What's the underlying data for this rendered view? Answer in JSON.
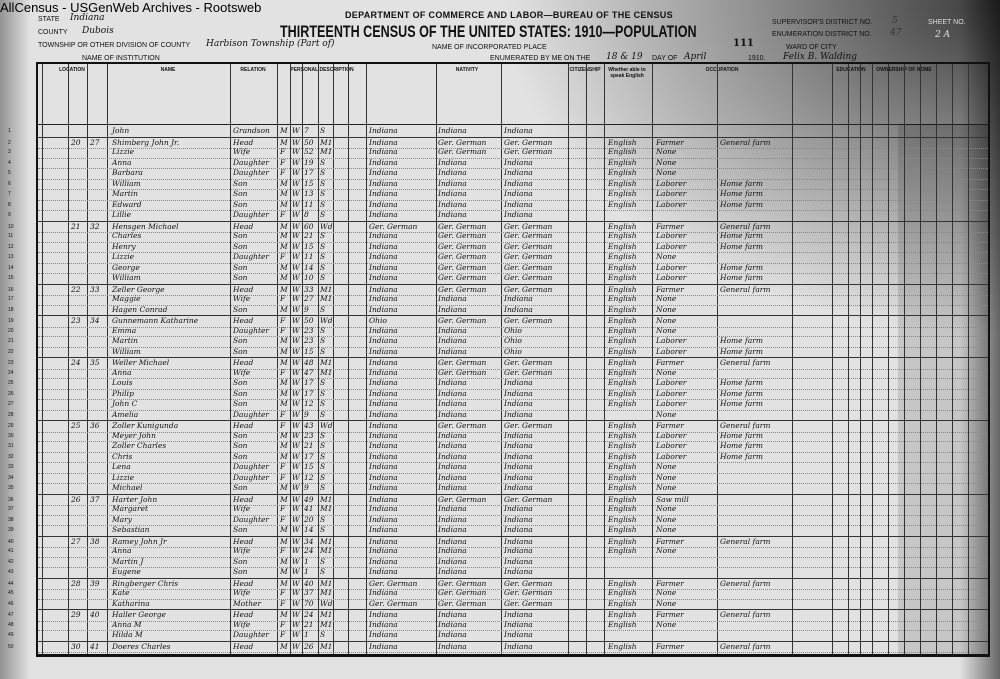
{
  "site_label": "AllCensus - USGenWeb Archives - Rootsweb",
  "header": {
    "department": "DEPARTMENT OF COMMERCE AND LABOR—BUREAU OF THE CENSUS",
    "title": "THIRTEENTH CENSUS OF THE UNITED STATES: 1910—POPULATION",
    "state_label": "State",
    "state_value": "Indiana",
    "county_label": "County",
    "county_value": "Dubois",
    "township_label": "Township or other division of county",
    "township_value": "Harbison Township (Part of)",
    "institution_label": "Name of institution",
    "incorporated_label": "Name of incorporated place",
    "enumerated_label": "Enumerated by me on the",
    "enumerated_day": "18 & 19",
    "day_of_label": "day of",
    "month": "April",
    "year": "1910.",
    "enumerator": "Felix B. Walding",
    "sheet_stamp": "111",
    "supervisor_label": "Supervisor's District No.",
    "supervisor_value": "5",
    "enumeration_label": "Enumeration District No.",
    "enumeration_value": "47",
    "ward_label": "Ward of city",
    "sheet_label": "Sheet No.",
    "sheet_value": "2 A"
  },
  "columns": {
    "location": "Location",
    "name": "Name",
    "relation": "Relation",
    "personal": "Personal Description",
    "nativity": "Nativity",
    "citizenship": "Citizenship",
    "language": "Whether able to speak English",
    "occupation": "Occupation",
    "education": "Education",
    "ownership": "Ownership of home"
  },
  "rows": [
    [
      "1",
      "",
      "",
      "John",
      "Grandson",
      "M",
      "W",
      "7",
      "S",
      "Indiana",
      "Indiana",
      "Indiana",
      "",
      "",
      ""
    ],
    [
      "2",
      "20",
      "27",
      "Shimberg John Jr.",
      "Head",
      "M",
      "W",
      "50",
      "M1",
      "Indiana",
      "Ger. German",
      "Ger. German",
      "English",
      "Farmer",
      "General farm"
    ],
    [
      "3",
      "",
      "",
      "Lizzie",
      "Wife",
      "F",
      "W",
      "52",
      "M1",
      "Indiana",
      "Ger. German",
      "Ger. German",
      "English",
      "None",
      ""
    ],
    [
      "4",
      "",
      "",
      "Anna",
      "Daughter",
      "F",
      "W",
      "19",
      "S",
      "Indiana",
      "Indiana",
      "Indiana",
      "English",
      "None",
      ""
    ],
    [
      "5",
      "",
      "",
      "Barbara",
      "Daughter",
      "F",
      "W",
      "17",
      "S",
      "Indiana",
      "Indiana",
      "Indiana",
      "English",
      "None",
      ""
    ],
    [
      "6",
      "",
      "",
      "William",
      "Son",
      "M",
      "W",
      "15",
      "S",
      "Indiana",
      "Indiana",
      "Indiana",
      "English",
      "Laborer",
      "Home farm"
    ],
    [
      "7",
      "",
      "",
      "Martin",
      "Son",
      "M",
      "W",
      "13",
      "S",
      "Indiana",
      "Indiana",
      "Indiana",
      "English",
      "Laborer",
      "Home farm"
    ],
    [
      "8",
      "",
      "",
      "Edward",
      "Son",
      "M",
      "W",
      "11",
      "S",
      "Indiana",
      "Indiana",
      "Indiana",
      "English",
      "Laborer",
      "Home farm"
    ],
    [
      "9",
      "",
      "",
      "Lillie",
      "Daughter",
      "F",
      "W",
      "8",
      "S",
      "Indiana",
      "Indiana",
      "Indiana",
      "",
      "",
      ""
    ],
    [
      "10",
      "21",
      "32",
      "Hensgen Michael",
      "Head",
      "M",
      "W",
      "60",
      "Wd",
      "Ger. German",
      "Ger. German",
      "Ger. German",
      "English",
      "Farmer",
      "General farm"
    ],
    [
      "11",
      "",
      "",
      "Charles",
      "Son",
      "M",
      "W",
      "21",
      "S",
      "Indiana",
      "Ger. German",
      "Ger. German",
      "English",
      "Laborer",
      "Home farm"
    ],
    [
      "12",
      "",
      "",
      "Henry",
      "Son",
      "M",
      "W",
      "15",
      "S",
      "Indiana",
      "Ger. German",
      "Ger. German",
      "English",
      "Laborer",
      "Home farm"
    ],
    [
      "13",
      "",
      "",
      "Lizzie",
      "Daughter",
      "F",
      "W",
      "11",
      "S",
      "Indiana",
      "Ger. German",
      "Ger. German",
      "English",
      "None",
      ""
    ],
    [
      "14",
      "",
      "",
      "George",
      "Son",
      "M",
      "W",
      "14",
      "S",
      "Indiana",
      "Ger. German",
      "Ger. German",
      "English",
      "Laborer",
      "Home farm"
    ],
    [
      "15",
      "",
      "",
      "William",
      "Son",
      "M",
      "W",
      "10",
      "S",
      "Indiana",
      "Ger. German",
      "Ger. German",
      "English",
      "Laborer",
      "Home farm"
    ],
    [
      "16",
      "22",
      "33",
      "Zeller George",
      "Head",
      "M",
      "W",
      "33",
      "M1",
      "Indiana",
      "Ger. German",
      "Ger. German",
      "English",
      "Farmer",
      "General farm"
    ],
    [
      "17",
      "",
      "",
      "Maggie",
      "Wife",
      "F",
      "W",
      "27",
      "M1",
      "Indiana",
      "Indiana",
      "Indiana",
      "English",
      "None",
      ""
    ],
    [
      "18",
      "",
      "",
      "Hagen Conrad",
      "Son",
      "M",
      "W",
      "9",
      "S",
      "Indiana",
      "Indiana",
      "Indiana",
      "English",
      "None",
      ""
    ],
    [
      "19",
      "23",
      "34",
      "Gunnemann Katharine",
      "Head",
      "F",
      "W",
      "50",
      "Wd",
      "Ohio",
      "Ger. German",
      "Ger. German",
      "English",
      "None",
      ""
    ],
    [
      "20",
      "",
      "",
      "Emma",
      "Daughter",
      "F",
      "W",
      "23",
      "S",
      "Indiana",
      "Indiana",
      "Ohio",
      "English",
      "None",
      ""
    ],
    [
      "21",
      "",
      "",
      "Martin",
      "Son",
      "M",
      "W",
      "23",
      "S",
      "Indiana",
      "Indiana",
      "Ohio",
      "English",
      "Laborer",
      "Home farm"
    ],
    [
      "22",
      "",
      "",
      "William",
      "Son",
      "M",
      "W",
      "15",
      "S",
      "Indiana",
      "Indiana",
      "Ohio",
      "English",
      "Laborer",
      "Home farm"
    ],
    [
      "23",
      "24",
      "35",
      "Weller Michael",
      "Head",
      "M",
      "W",
      "48",
      "M1",
      "Indiana",
      "Ger. German",
      "Ger. German",
      "English",
      "Farmer",
      "General farm"
    ],
    [
      "24",
      "",
      "",
      "Anna",
      "Wife",
      "F",
      "W",
      "47",
      "M1",
      "Indiana",
      "Ger. German",
      "Ger. German",
      "English",
      "None",
      ""
    ],
    [
      "25",
      "",
      "",
      "Louis",
      "Son",
      "M",
      "W",
      "17",
      "S",
      "Indiana",
      "Indiana",
      "Indiana",
      "English",
      "Laborer",
      "Home farm"
    ],
    [
      "26",
      "",
      "",
      "Philip",
      "Son",
      "M",
      "W",
      "17",
      "S",
      "Indiana",
      "Indiana",
      "Indiana",
      "English",
      "Laborer",
      "Home farm"
    ],
    [
      "27",
      "",
      "",
      "John C",
      "Son",
      "M",
      "W",
      "12",
      "S",
      "Indiana",
      "Indiana",
      "Indiana",
      "English",
      "Laborer",
      "Home farm"
    ],
    [
      "28",
      "",
      "",
      "Amelia",
      "Daughter",
      "F",
      "W",
      "9",
      "S",
      "Indiana",
      "Indiana",
      "Indiana",
      "",
      "None",
      ""
    ],
    [
      "29",
      "25",
      "36",
      "Zoller Kunigunda",
      "Head",
      "F",
      "W",
      "43",
      "Wd",
      "Indiana",
      "Ger. German",
      "Ger. German",
      "English",
      "Farmer",
      "General farm"
    ],
    [
      "30",
      "",
      "",
      "Meyer John",
      "Son",
      "M",
      "W",
      "23",
      "S",
      "Indiana",
      "Indiana",
      "Indiana",
      "English",
      "Laborer",
      "Home farm"
    ],
    [
      "31",
      "",
      "",
      "Zoller Charles",
      "Son",
      "M",
      "W",
      "21",
      "S",
      "Indiana",
      "Indiana",
      "Indiana",
      "English",
      "Laborer",
      "Home farm"
    ],
    [
      "32",
      "",
      "",
      "Chris",
      "Son",
      "M",
      "W",
      "17",
      "S",
      "Indiana",
      "Indiana",
      "Indiana",
      "English",
      "Laborer",
      "Home farm"
    ],
    [
      "33",
      "",
      "",
      "Lena",
      "Daughter",
      "F",
      "W",
      "15",
      "S",
      "Indiana",
      "Indiana",
      "Indiana",
      "English",
      "None",
      ""
    ],
    [
      "34",
      "",
      "",
      "Lizzie",
      "Daughter",
      "F",
      "W",
      "12",
      "S",
      "Indiana",
      "Indiana",
      "Indiana",
      "English",
      "None",
      ""
    ],
    [
      "35",
      "",
      "",
      "Michael",
      "Son",
      "M",
      "W",
      "9",
      "S",
      "Indiana",
      "Indiana",
      "Indiana",
      "English",
      "None",
      ""
    ],
    [
      "36",
      "26",
      "37",
      "Harter John",
      "Head",
      "M",
      "W",
      "49",
      "M1",
      "Indiana",
      "Ger. German",
      "Ger. German",
      "English",
      "Saw mill",
      ""
    ],
    [
      "37",
      "",
      "",
      "Margaret",
      "Wife",
      "F",
      "W",
      "41",
      "M1",
      "Indiana",
      "Indiana",
      "Indiana",
      "English",
      "None",
      ""
    ],
    [
      "38",
      "",
      "",
      "Mary",
      "Daughter",
      "F",
      "W",
      "20",
      "S",
      "Indiana",
      "Indiana",
      "Indiana",
      "English",
      "None",
      ""
    ],
    [
      "39",
      "",
      "",
      "Sebastian",
      "Son",
      "M",
      "W",
      "14",
      "S",
      "Indiana",
      "Indiana",
      "Indiana",
      "English",
      "None",
      ""
    ],
    [
      "40",
      "27",
      "38",
      "Ramey John Jr",
      "Head",
      "M",
      "W",
      "34",
      "M1",
      "Indiana",
      "Indiana",
      "Indiana",
      "English",
      "Farmer",
      "General farm"
    ],
    [
      "41",
      "",
      "",
      "Anna",
      "Wife",
      "F",
      "W",
      "24",
      "M1",
      "Indiana",
      "Indiana",
      "Indiana",
      "English",
      "None",
      ""
    ],
    [
      "42",
      "",
      "",
      "Martin J",
      "Son",
      "M",
      "W",
      "1",
      "S",
      "Indiana",
      "Indiana",
      "Indiana",
      "",
      "",
      ""
    ],
    [
      "43",
      "",
      "",
      "Eugene",
      "Son",
      "M",
      "W",
      "1",
      "S",
      "Indiana",
      "Indiana",
      "Indiana",
      "",
      "",
      ""
    ],
    [
      "44",
      "28",
      "39",
      "Ringberger Chris",
      "Head",
      "M",
      "W",
      "40",
      "M1",
      "Ger. German",
      "Ger. German",
      "Ger. German",
      "English",
      "Farmer",
      "General farm"
    ],
    [
      "45",
      "",
      "",
      "Kate",
      "Wife",
      "F",
      "W",
      "37",
      "M1",
      "Indiana",
      "Ger. German",
      "Ger. German",
      "English",
      "None",
      ""
    ],
    [
      "46",
      "",
      "",
      "Katharina",
      "Mother",
      "F",
      "W",
      "70",
      "Wd",
      "Ger. German",
      "Ger. German",
      "Ger. German",
      "English",
      "None",
      ""
    ],
    [
      "47",
      "29",
      "40",
      "Haller George",
      "Head",
      "M",
      "W",
      "24",
      "M1",
      "Indiana",
      "Indiana",
      "Indiana",
      "English",
      "Farmer",
      "General farm"
    ],
    [
      "48",
      "",
      "",
      "Anna M",
      "Wife",
      "F",
      "W",
      "21",
      "M1",
      "Indiana",
      "Indiana",
      "Indiana",
      "English",
      "None",
      ""
    ],
    [
      "49",
      "",
      "",
      "Hilda M",
      "Daughter",
      "F",
      "W",
      "1",
      "S",
      "Indiana",
      "Indiana",
      "Indiana",
      "",
      "",
      ""
    ],
    [
      "50",
      "30",
      "41",
      "Doeres Charles",
      "Head",
      "M",
      "W",
      "26",
      "M1",
      "Indiana",
      "Indiana",
      "Indiana",
      "English",
      "Farmer",
      "General farm"
    ]
  ]
}
